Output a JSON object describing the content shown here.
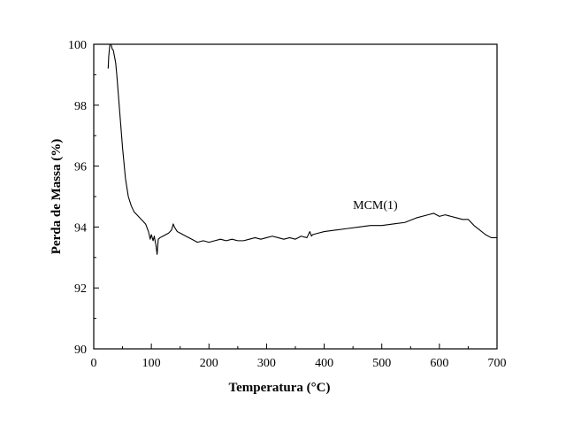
{
  "chart_data": {
    "type": "line",
    "xlabel": "Temperatura (°C)",
    "ylabel": "Perda de Massa (%)",
    "xlim": [
      0,
      700
    ],
    "ylim": [
      90,
      100
    ],
    "x_ticks": [
      0,
      100,
      200,
      300,
      400,
      500,
      600,
      700
    ],
    "y_ticks": [
      90,
      92,
      94,
      96,
      98,
      100
    ],
    "grid": false,
    "annotations": [
      {
        "text": "MCM(1)",
        "x": 450,
        "y": 94.6
      }
    ],
    "series": [
      {
        "name": "MCM(1)",
        "color": "#000000",
        "x": [
          25,
          26,
          28,
          30,
          32,
          34,
          36,
          38,
          40,
          45,
          50,
          55,
          60,
          65,
          70,
          75,
          80,
          85,
          90,
          95,
          98,
          100,
          103,
          105,
          108,
          110,
          112,
          115,
          120,
          125,
          130,
          135,
          138,
          140,
          145,
          150,
          160,
          170,
          180,
          190,
          200,
          210,
          220,
          230,
          240,
          250,
          260,
          270,
          280,
          290,
          300,
          310,
          320,
          330,
          340,
          350,
          360,
          370,
          375,
          378,
          380,
          390,
          400,
          420,
          440,
          460,
          480,
          500,
          520,
          540,
          560,
          580,
          590,
          600,
          610,
          620,
          630,
          640,
          650,
          660,
          670,
          680,
          690,
          700
        ],
        "y": [
          99.2,
          99.6,
          100.0,
          100.0,
          99.85,
          99.8,
          99.6,
          99.4,
          99.0,
          97.8,
          96.6,
          95.6,
          95.0,
          94.7,
          94.5,
          94.4,
          94.3,
          94.2,
          94.1,
          93.85,
          93.6,
          93.75,
          93.55,
          93.7,
          93.4,
          93.1,
          93.6,
          93.65,
          93.7,
          93.75,
          93.8,
          93.9,
          94.1,
          94.0,
          93.85,
          93.8,
          93.7,
          93.6,
          93.5,
          93.55,
          93.5,
          93.55,
          93.6,
          93.55,
          93.6,
          93.55,
          93.55,
          93.6,
          93.65,
          93.6,
          93.65,
          93.7,
          93.65,
          93.6,
          93.65,
          93.6,
          93.7,
          93.65,
          93.85,
          93.7,
          93.75,
          93.8,
          93.85,
          93.9,
          93.95,
          94.0,
          94.05,
          94.05,
          94.1,
          94.15,
          94.3,
          94.4,
          94.45,
          94.35,
          94.4,
          94.35,
          94.3,
          94.25,
          94.25,
          94.05,
          93.9,
          93.75,
          93.65,
          93.65
        ]
      }
    ]
  }
}
